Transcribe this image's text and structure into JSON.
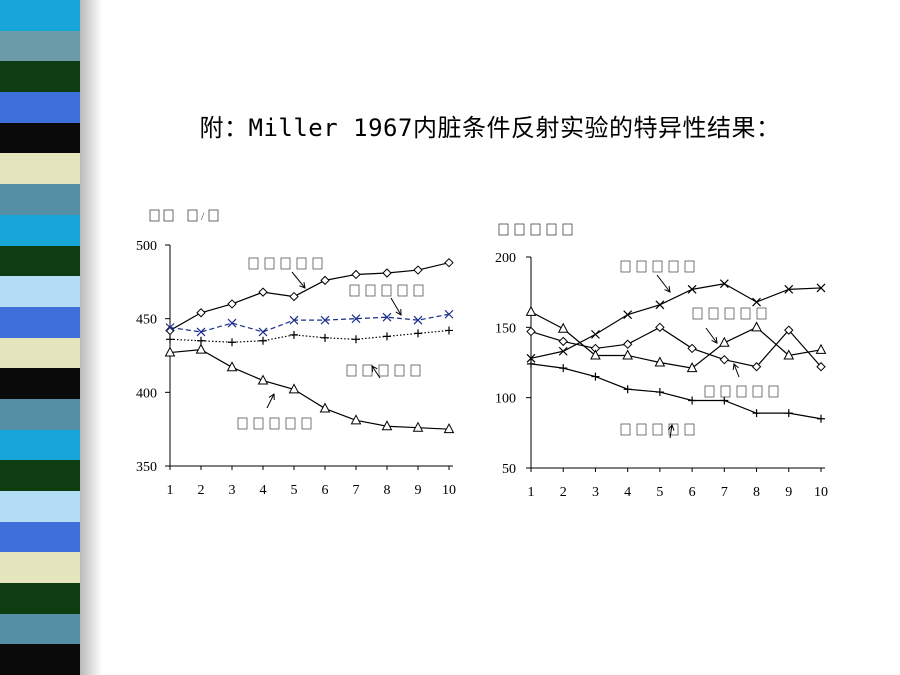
{
  "slide": {
    "title": "附：Miller 1967内脏条件反射实验的特异性结果：",
    "stripe_colors": [
      "#18a6d8",
      "#6b9aa8",
      "#0f3d12",
      "#3f6fd9",
      "#0a0a0a",
      "#e6e6be",
      "#548fa6",
      "#18a6d8",
      "#0f3d12",
      "#b3dcf5",
      "#3f6fd9",
      "#e6e6be",
      "#0a0a0a",
      "#548fa6",
      "#18a6d8",
      "#0f3d12",
      "#b3dcf5",
      "#3f6fd9",
      "#e6e6be",
      "#0f3d12",
      "#548fa6",
      "#0a0a0a"
    ]
  },
  "chart_data": [
    {
      "type": "line",
      "ylabel": "",
      "ylim": [
        350,
        500
      ],
      "yticks": [
        350,
        400,
        450,
        500
      ],
      "x": [
        1,
        2,
        3,
        4,
        5,
        6,
        7,
        8,
        9,
        10
      ],
      "series": [
        {
          "marker": "diamond",
          "style": "solid",
          "color": "#000000",
          "values": [
            442,
            454,
            460,
            468,
            465,
            476,
            480,
            481,
            483,
            488
          ]
        },
        {
          "marker": "x",
          "style": "dashed",
          "color": "#1b2f8a",
          "values": [
            444,
            441,
            447,
            441,
            449,
            449,
            450,
            451,
            449,
            453
          ]
        },
        {
          "marker": "plus",
          "style": "dotted",
          "color": "#000000",
          "values": [
            436,
            435,
            434,
            435,
            439,
            437,
            436,
            438,
            440,
            442
          ]
        },
        {
          "marker": "triangle",
          "style": "solid",
          "color": "#000000",
          "values": [
            427,
            429,
            417,
            408,
            402,
            389,
            381,
            377,
            376,
            375
          ]
        }
      ]
    },
    {
      "type": "line",
      "ylabel": "",
      "ylim": [
        50,
        200
      ],
      "yticks": [
        50,
        100,
        150,
        200
      ],
      "x": [
        1,
        2,
        3,
        4,
        5,
        6,
        7,
        8,
        9,
        10
      ],
      "series": [
        {
          "marker": "x",
          "style": "solid",
          "color": "#000000",
          "values": [
            128,
            133,
            145,
            159,
            166,
            177,
            181,
            168,
            177,
            178
          ]
        },
        {
          "marker": "diamond",
          "style": "solid",
          "color": "#000000",
          "values": [
            147,
            140,
            135,
            138,
            150,
            135,
            127,
            122,
            148,
            122
          ]
        },
        {
          "marker": "triangle",
          "style": "solid",
          "color": "#000000",
          "values": [
            161,
            149,
            130,
            130,
            125,
            121,
            139,
            150,
            130,
            134
          ]
        },
        {
          "marker": "plus",
          "style": "solid",
          "color": "#000000",
          "values": [
            124,
            121,
            115,
            106,
            104,
            98,
            98,
            89,
            89,
            85
          ]
        }
      ]
    }
  ]
}
